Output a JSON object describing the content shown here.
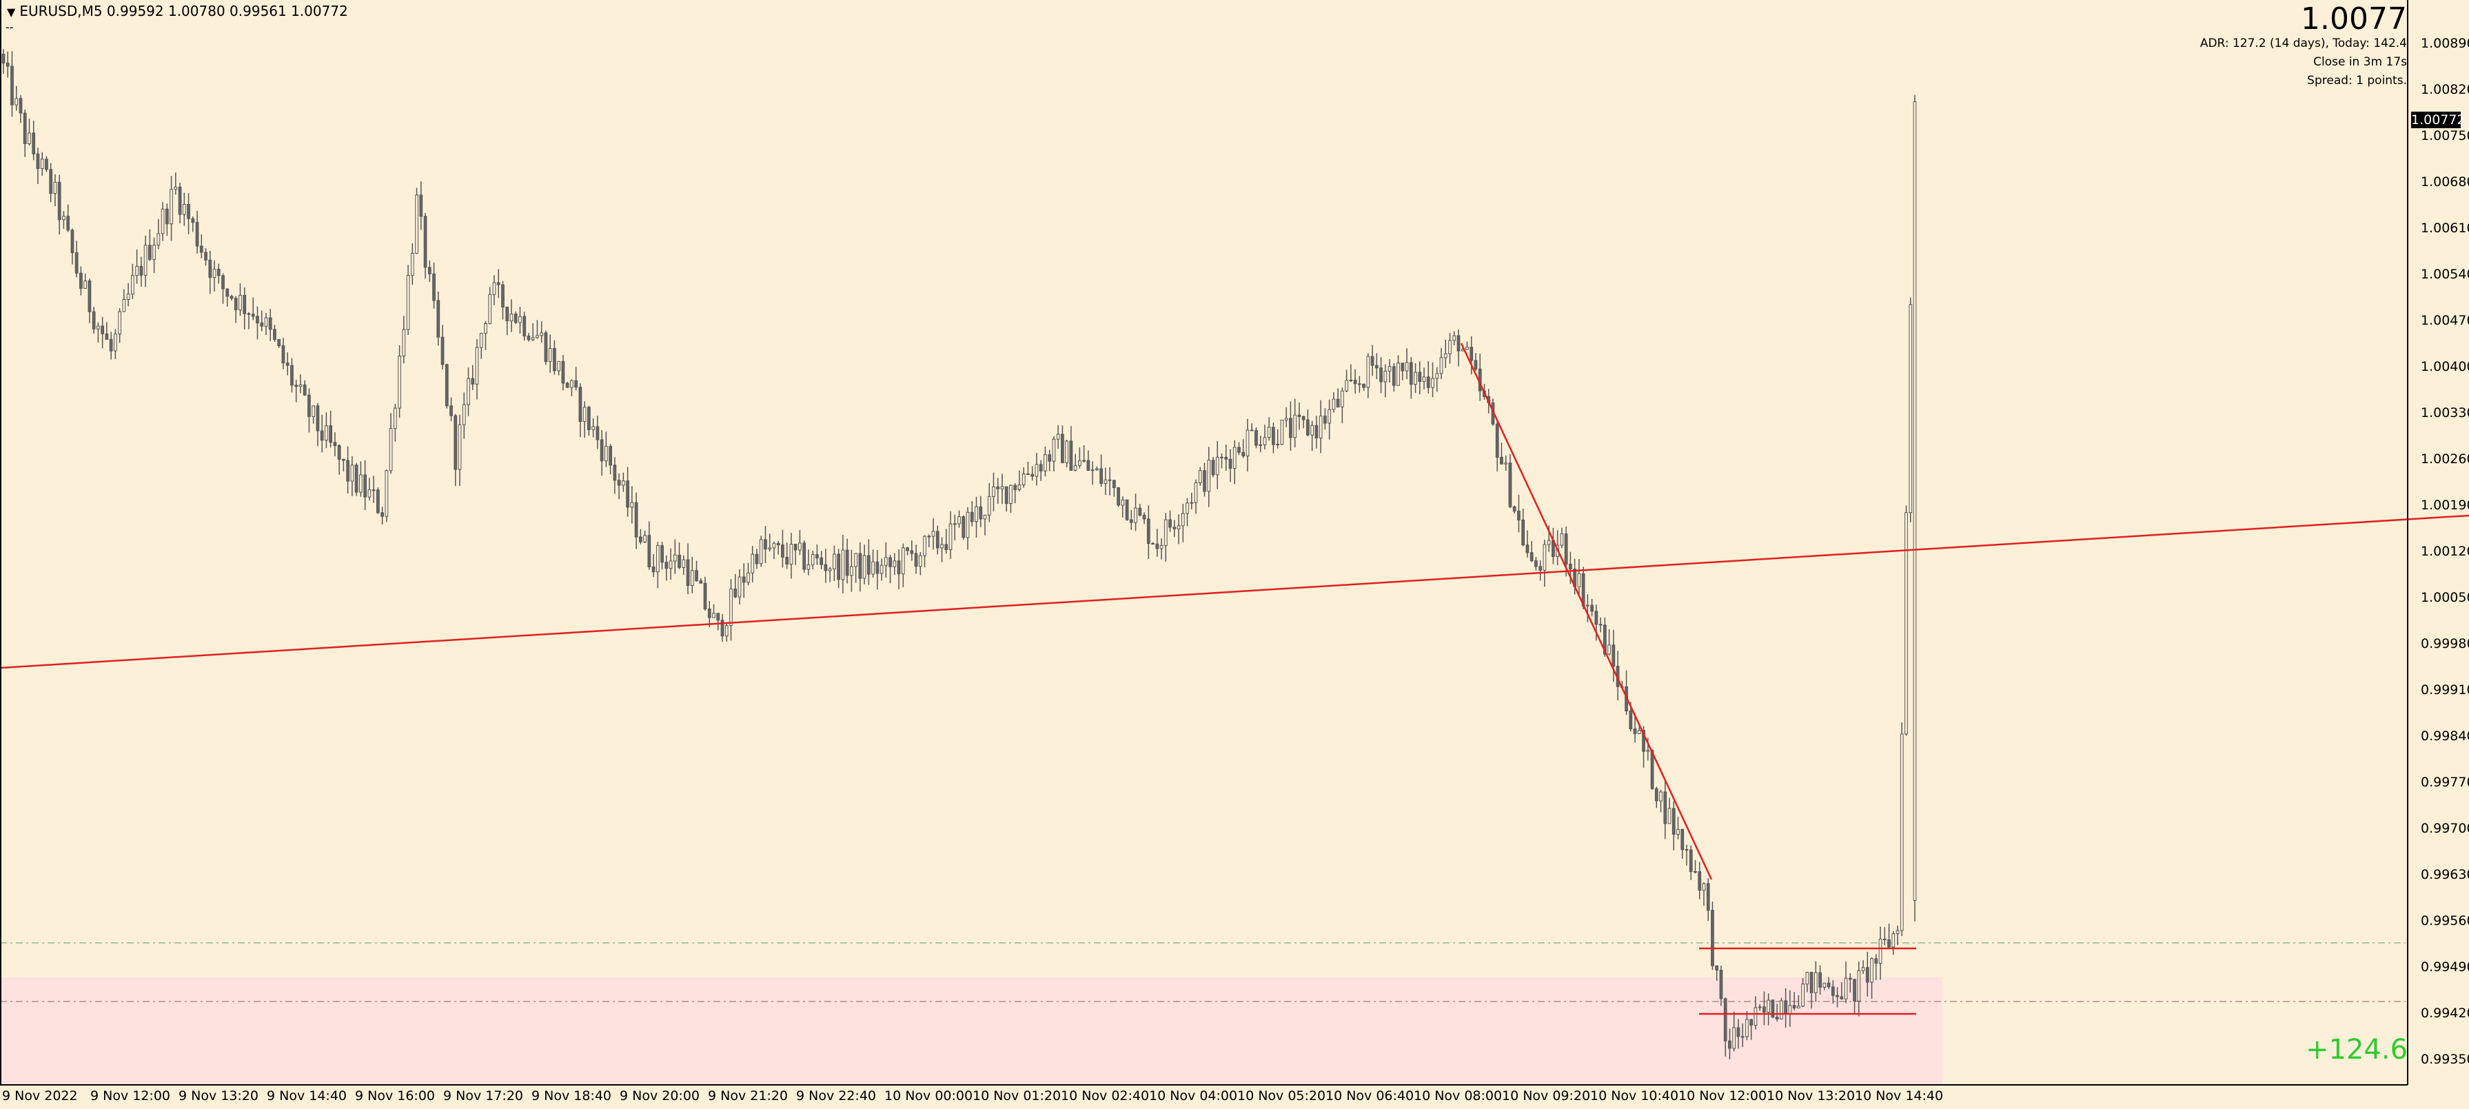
{
  "symbol": {
    "header": "EURUSD,M5  0.99592 1.00780 0.99561 1.00772",
    "sub": "--"
  },
  "current_price_big": "1.0077",
  "info_lines": [
    "ADR: 127.2 (14 days), Today: 142.4",
    "Close in 3m 17s",
    "Spread: 1 points."
  ],
  "price_tag": "1.00772",
  "profit_label": "+124.6",
  "price_axis": [
    "1.00890",
    "1.00820",
    "1.00750",
    "1.00680",
    "1.00610",
    "1.00540",
    "1.00470",
    "1.00400",
    "1.00330",
    "1.00260",
    "1.00190",
    "1.00120",
    "1.00050",
    "0.99980",
    "0.99910",
    "0.99840",
    "0.99770",
    "0.99700",
    "0.99630",
    "0.99560",
    "0.99490",
    "0.99420",
    "0.99350"
  ],
  "time_axis": [
    "9 Nov 2022",
    "9 Nov 12:00",
    "9 Nov 13:20",
    "9 Nov 14:40",
    "9 Nov 16:00",
    "9 Nov 17:20",
    "9 Nov 18:40",
    "9 Nov 20:00",
    "9 Nov 21:20",
    "9 Nov 22:40",
    "10 Nov 00:00",
    "10 Nov 01:20",
    "10 Nov 02:40",
    "10 Nov 04:00",
    "10 Nov 05:20",
    "10 Nov 06:40",
    "10 Nov 08:00",
    "10 Nov 09:20",
    "10 Nov 10:40",
    "10 Nov 12:00",
    "10 Nov 13:20",
    "10 Nov 14:40"
  ],
  "colors": {
    "background": "#fdf0d8",
    "zone": "#fde2e0",
    "trendline": "#e02020",
    "candle": "#555555",
    "profit": "#2ecc2e"
  },
  "chart_data": {
    "type": "candlestick",
    "timeframe": "M5",
    "symbol": "EURUSD",
    "ylim": [
      0.9932,
      1.0092
    ],
    "anchors": [
      [
        0,
        1.0082
      ],
      [
        5,
        1.0072
      ],
      [
        12,
        1.0063
      ],
      [
        18,
        1.005
      ],
      [
        25,
        1.004
      ],
      [
        30,
        1.005
      ],
      [
        40,
        1.0064
      ],
      [
        50,
        1.005
      ],
      [
        60,
        1.0045
      ],
      [
        70,
        1.0032
      ],
      [
        80,
        1.0022
      ],
      [
        88,
        1.0017
      ],
      [
        96,
        1.0062
      ],
      [
        105,
        1.0025
      ],
      [
        113,
        1.0049
      ],
      [
        125,
        1.0042
      ],
      [
        140,
        1.0025
      ],
      [
        150,
        1.001
      ],
      [
        158,
        1.0009
      ],
      [
        166,
        0.9999
      ],
      [
        175,
        1.0011
      ],
      [
        190,
        1.0009
      ],
      [
        205,
        1.0008
      ],
      [
        220,
        1.0013
      ],
      [
        235,
        1.0021
      ],
      [
        245,
        1.0026
      ],
      [
        258,
        1.002
      ],
      [
        268,
        1.0012
      ],
      [
        278,
        1.0021
      ],
      [
        290,
        1.0028
      ],
      [
        305,
        1.0029
      ],
      [
        318,
        1.0038
      ],
      [
        330,
        1.0036
      ],
      [
        338,
        1.0042
      ],
      [
        345,
        1.0031
      ],
      [
        355,
        1.0008
      ],
      [
        362,
        1.0012
      ],
      [
        372,
        0.9997
      ],
      [
        385,
        0.9974
      ],
      [
        395,
        0.9961
      ],
      [
        400,
        0.9938
      ],
      [
        410,
        0.9943
      ],
      [
        420,
        0.9947
      ],
      [
        430,
        0.9946
      ],
      [
        440,
        0.9955
      ],
      [
        444,
        1.0077
      ]
    ]
  }
}
